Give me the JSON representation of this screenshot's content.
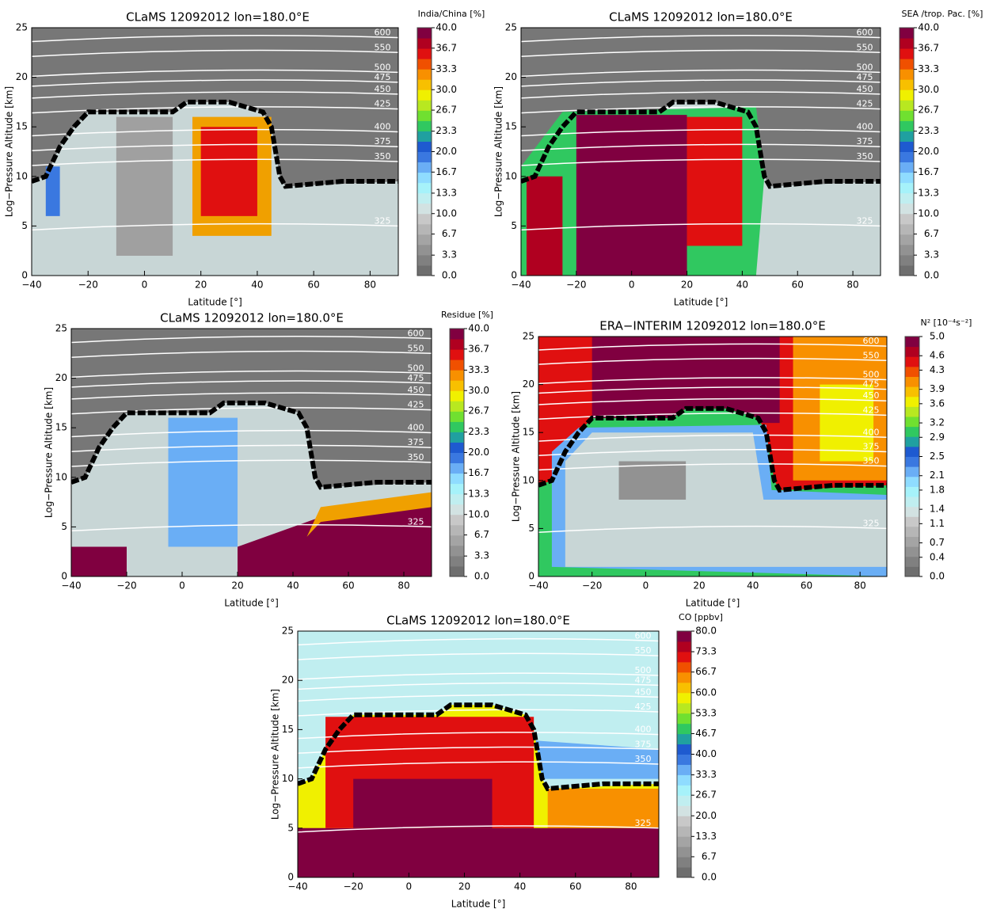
{
  "chart_data": [
    {
      "type": "contour",
      "title": "CLaMS 12092012 lon=180.0°E",
      "colorbar_label": "India/China [%]",
      "xlabel": "Latitude [°]",
      "ylabel": "Log−Pressure Altitude [km]",
      "xlim": [
        -40,
        90
      ],
      "ylim": [
        0,
        25
      ],
      "xticks": [
        {
          "value": -40,
          "label": "−40"
        },
        {
          "value": -20,
          "label": "−20"
        },
        0,
        20,
        40,
        60,
        80
      ],
      "yticks": [
        0,
        5,
        10,
        15,
        20,
        25
      ],
      "clim": [
        0,
        40
      ],
      "cticks": [
        {
          "value": 0,
          "label": "0.0"
        },
        3.3,
        6.7,
        {
          "value": 10,
          "label": "10.0"
        },
        13.3,
        16.7,
        {
          "value": 20,
          "label": "20.0"
        },
        23.3,
        26.7,
        {
          "value": 30,
          "label": "30.0"
        },
        33.3,
        36.7,
        {
          "value": 40,
          "label": "40.0"
        }
      ],
      "isentropes": [
        325,
        350,
        375,
        400,
        425,
        450,
        475,
        500,
        550,
        600
      ]
    },
    {
      "type": "contour",
      "title": "CLaMS 12092012 lon=180.0°E",
      "colorbar_label": "SEA /trop. Pac. [%]",
      "xlabel": "Latitude [°]",
      "ylabel": "Log−Pressure Altitude [km]",
      "xlim": [
        -40,
        90
      ],
      "ylim": [
        0,
        25
      ],
      "xticks": [
        {
          "value": -40,
          "label": "−40"
        },
        {
          "value": -20,
          "label": "−20"
        },
        0,
        20,
        40,
        60,
        80
      ],
      "yticks": [
        0,
        5,
        10,
        15,
        20,
        25
      ],
      "clim": [
        0,
        40
      ],
      "cticks": [
        {
          "value": 0,
          "label": "0.0"
        },
        3.3,
        6.7,
        {
          "value": 10,
          "label": "10.0"
        },
        13.3,
        16.7,
        {
          "value": 20,
          "label": "20.0"
        },
        23.3,
        26.7,
        {
          "value": 30,
          "label": "30.0"
        },
        33.3,
        36.7,
        {
          "value": 40,
          "label": "40.0"
        }
      ],
      "isentropes": [
        325,
        350,
        375,
        400,
        425,
        450,
        475,
        500,
        550,
        600
      ]
    },
    {
      "type": "contour",
      "title": "CLaMS 12092012 lon=180.0°E",
      "colorbar_label": "Residue [%]",
      "xlabel": "Latitude [°]",
      "ylabel": "Log−Pressure Altitude [km]",
      "xlim": [
        -40,
        90
      ],
      "ylim": [
        0,
        25
      ],
      "xticks": [
        {
          "value": -40,
          "label": "−40"
        },
        {
          "value": -20,
          "label": "−20"
        },
        0,
        20,
        40,
        60,
        80
      ],
      "yticks": [
        0,
        5,
        10,
        15,
        20,
        25
      ],
      "clim": [
        0,
        40
      ],
      "cticks": [
        {
          "value": 0,
          "label": "0.0"
        },
        3.3,
        6.7,
        {
          "value": 10,
          "label": "10.0"
        },
        13.3,
        16.7,
        {
          "value": 20,
          "label": "20.0"
        },
        23.3,
        26.7,
        {
          "value": 30,
          "label": "30.0"
        },
        33.3,
        36.7,
        {
          "value": 40,
          "label": "40.0"
        }
      ],
      "isentropes": [
        325,
        350,
        375,
        400,
        425,
        450,
        475,
        500,
        550,
        600
      ]
    },
    {
      "type": "contour",
      "title": "ERA−INTERIM 12092012 lon=180.0°E",
      "colorbar_label": "N² [10⁻⁴s⁻²]",
      "xlabel": "Latitude [°]",
      "ylabel": "Log−Pressure Altitude [km]",
      "xlim": [
        -40,
        90
      ],
      "ylim": [
        0,
        25
      ],
      "xticks": [
        {
          "value": -40,
          "label": "−40"
        },
        {
          "value": -20,
          "label": "−20"
        },
        0,
        20,
        40,
        60,
        80
      ],
      "yticks": [
        0,
        5,
        10,
        15,
        20,
        25
      ],
      "clim": [
        0,
        5
      ],
      "cticks": [
        {
          "value": 0,
          "label": "0.0"
        },
        0.4,
        0.7,
        1.1,
        1.4,
        1.8,
        2.1,
        2.5,
        2.9,
        3.2,
        3.6,
        3.9,
        4.3,
        4.6,
        {
          "value": 5,
          "label": "5.0"
        }
      ],
      "isentropes": [
        325,
        350,
        375,
        400,
        425,
        450,
        475,
        500,
        550,
        600
      ]
    },
    {
      "type": "contour",
      "title": "CLaMS 12092012 lon=180.0°E",
      "colorbar_label": "CO  [ppbv]",
      "xlabel": "Latitude [°]",
      "ylabel": "Log−Pressure Altitude [km]",
      "xlim": [
        -40,
        90
      ],
      "ylim": [
        0,
        25
      ],
      "xticks": [
        {
          "value": -40,
          "label": "−40"
        },
        {
          "value": -20,
          "label": "−20"
        },
        0,
        20,
        40,
        60,
        80
      ],
      "yticks": [
        0,
        5,
        10,
        15,
        20,
        25
      ],
      "clim": [
        0,
        80
      ],
      "cticks": [
        {
          "value": 0,
          "label": "0.0"
        },
        6.7,
        13.3,
        {
          "value": 20,
          "label": "20.0"
        },
        26.7,
        33.3,
        {
          "value": 40,
          "label": "40.0"
        },
        46.7,
        53.3,
        {
          "value": 60,
          "label": "60.0"
        },
        66.7,
        73.3,
        {
          "value": 80,
          "label": "80.0"
        }
      ],
      "isentropes": [
        325,
        350,
        375,
        400,
        425,
        450,
        475,
        500,
        550,
        600
      ]
    }
  ]
}
